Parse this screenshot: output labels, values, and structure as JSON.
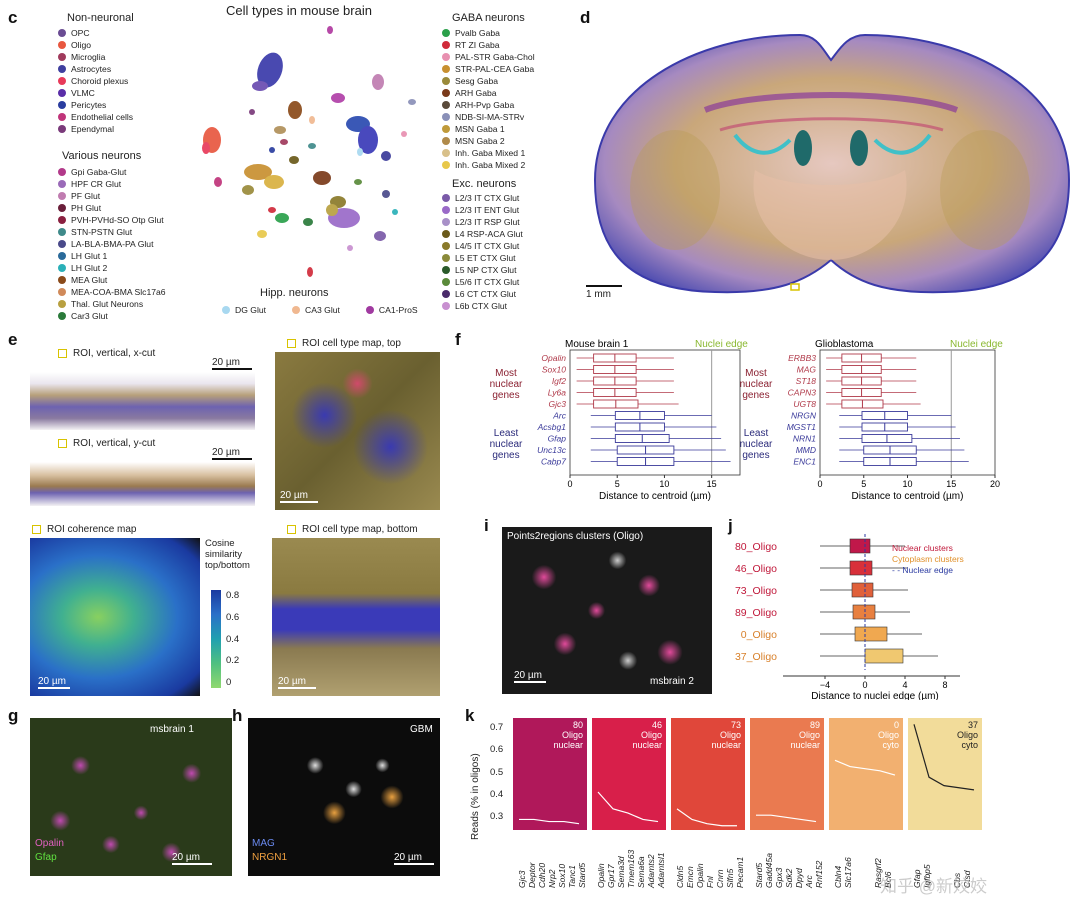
{
  "panels": {
    "c": "c",
    "d": "d",
    "e": "e",
    "f": "f",
    "g": "g",
    "h": "h",
    "i": "i",
    "j": "j",
    "k": "k"
  },
  "panel_c": {
    "title": "Cell types in mouse brain",
    "non_neuronal": {
      "title": "Non-neuronal",
      "items": [
        {
          "label": "OPC",
          "color": "#6a4c93"
        },
        {
          "label": "Oligo",
          "color": "#e8573f"
        },
        {
          "label": "Microglia",
          "color": "#a03a5c"
        },
        {
          "label": "Astrocytes",
          "color": "#3f3f9f"
        },
        {
          "label": "Choroid plexus",
          "color": "#e83a5a"
        },
        {
          "label": "VLMC",
          "color": "#5a2ea8"
        },
        {
          "label": "Pericytes",
          "color": "#2a3d9f"
        },
        {
          "label": "Endothelial cells",
          "color": "#c0347a"
        },
        {
          "label": "Ependymal",
          "color": "#7a3a7a"
        }
      ]
    },
    "various": {
      "title": "Various neurons",
      "items": [
        {
          "label": "Gpi Gaba-Glut",
          "color": "#b23a8a"
        },
        {
          "label": "HPF CR Glut",
          "color": "#9a6ab8"
        },
        {
          "label": "PF Glut",
          "color": "#c07cb0"
        },
        {
          "label": "PH Glut",
          "color": "#6a1f3a"
        },
        {
          "label": "PVH-PVHd-SO Otp Glut",
          "color": "#8a2040"
        },
        {
          "label": "STN-PSTN Glut",
          "color": "#3f8a8a"
        },
        {
          "label": "LA-BLA-BMA-PA Glut",
          "color": "#4a4a8a"
        },
        {
          "label": "LH Glut 1",
          "color": "#2a6a9a"
        },
        {
          "label": "LH Glut 2",
          "color": "#2ab0b8"
        },
        {
          "label": "MEA Glut",
          "color": "#8a4a1a"
        },
        {
          "label": "MEA-COA-BMA Slc17a6",
          "color": "#d08a5a"
        },
        {
          "label": "Thal. Glut Neurons",
          "color": "#b8a040"
        },
        {
          "label": "Car3 Glut",
          "color": "#2a7a3a"
        }
      ]
    },
    "gaba": {
      "title": "GABA neurons",
      "items": [
        {
          "label": "Pvalb Gaba",
          "color": "#2aa04a"
        },
        {
          "label": "RT ZI Gaba",
          "color": "#d02a3a"
        },
        {
          "label": "PAL-STR Gaba-Chol",
          "color": "#e890b0"
        },
        {
          "label": "STR-PAL-CEA Gaba",
          "color": "#c89030"
        },
        {
          "label": "Sesg Gaba",
          "color": "#9a8a3a"
        },
        {
          "label": "ARH Gaba",
          "color": "#7a3a1a"
        },
        {
          "label": "ARH-Pvp Gaba",
          "color": "#5a4a3a"
        },
        {
          "label": "NDB-SI-MA-STRv",
          "color": "#8a90b8"
        },
        {
          "label": "MSN Gaba 1",
          "color": "#c09a3a"
        },
        {
          "label": "MSN Gaba 2",
          "color": "#b08a4a"
        },
        {
          "label": "Inh. Gaba Mixed 1",
          "color": "#d8c08a"
        },
        {
          "label": "Inh. Gaba Mixed 2",
          "color": "#e8c84a"
        }
      ]
    },
    "exc": {
      "title": "Exc. neurons",
      "items": [
        {
          "label": "L2/3 IT CTX Glut",
          "color": "#7a5aa8"
        },
        {
          "label": "L2/3 IT ENT Glut",
          "color": "#9a6ac8"
        },
        {
          "label": "L2/3 IT RSP Glut",
          "color": "#a890c8"
        },
        {
          "label": "L4 RSP-ACA Glut",
          "color": "#6a5a1a"
        },
        {
          "label": "L4/5 IT CTX Glut",
          "color": "#8a7a2a"
        },
        {
          "label": "L5 ET CTX Glut",
          "color": "#8a8a3a"
        },
        {
          "label": "L5 NP CTX Glut",
          "color": "#2a5a2a"
        },
        {
          "label": "L5/6 IT CTX Glut",
          "color": "#5a8a3a"
        },
        {
          "label": "L6 CT CTX Glut",
          "color": "#4a2a6a"
        },
        {
          "label": "L6b CTX Glut",
          "color": "#c890d0"
        }
      ]
    },
    "hipp": {
      "title": "Hipp. neurons",
      "items": [
        {
          "label": "DG Glut",
          "color": "#a8d8f0"
        },
        {
          "label": "CA3 Glut",
          "color": "#f0b890"
        },
        {
          "label": "CA1-ProS",
          "color": "#a03aa0"
        }
      ]
    }
  },
  "panel_d": {
    "scale": "1 mm"
  },
  "panel_e": {
    "roi_x": "ROI, vertical, x-cut",
    "roi_y": "ROI, vertical, y-cut",
    "roi_top": "ROI cell type map, top",
    "roi_bottom": "ROI cell type map, bottom",
    "roi_coherence": "ROI coherence map",
    "cbar_title": "Cosine similarity top/bottom",
    "cbar_ticks": [
      "0.8",
      "0.6",
      "0.4",
      "0.2",
      "0"
    ],
    "scale": "20 µm"
  },
  "panel_f": {
    "mouse_title": "Mouse brain 1",
    "gbm_title": "Glioblastoma",
    "nuclei_edge": "Nuclei edge",
    "most": "Most nuclear genes",
    "least": "Least nuclear genes",
    "xlabel": "Distance to centroid (µm)",
    "mouse_most_genes": [
      "Opalin",
      "Sox10",
      "Igf2",
      "Ly6a",
      "Gjc3"
    ],
    "mouse_least_genes": [
      "Arc",
      "Acsbg1",
      "Gfap",
      "Unc13c",
      "Cabp7"
    ],
    "gbm_most_genes": [
      "ERBB3",
      "MAG",
      "ST18",
      "CAPN3",
      "UGT8"
    ],
    "gbm_least_genes": [
      "NRGN",
      "MGST1",
      "NRN1",
      "MMD",
      "ENC1"
    ],
    "mouse_ticks": [
      "0",
      "5",
      "10",
      "15"
    ],
    "gbm_ticks": [
      "0",
      "5",
      "10",
      "15",
      "20"
    ]
  },
  "panel_g": {
    "label": "msbrain 1",
    "gene1": "Opalin",
    "gene2": "Gfap",
    "scale": "20 µm"
  },
  "panel_h": {
    "label": "GBM",
    "gene1": "MAG",
    "gene2": "NRGN1",
    "scale": "20 µm"
  },
  "panel_i": {
    "title": "Points2regions clusters (Oligo)",
    "label": "msbrain 2",
    "scale": "20 µm"
  },
  "panel_j": {
    "clusters": [
      "80_Oligo",
      "46_Oligo",
      "73_Oligo",
      "89_Oligo",
      "0_Oligo",
      "37_Oligo"
    ],
    "legend": [
      "Nuclear clusters",
      "Cytoplasm clusters",
      "Nuclear edge"
    ],
    "xlabel": "Distance to nuclei edge (µm)",
    "ticks": [
      "−4",
      "0",
      "4",
      "8"
    ]
  },
  "panel_k": {
    "ylabel": "Reads (% in oligos)",
    "yticks": [
      "0.7",
      "0.6",
      "0.5",
      "0.4",
      "0.3"
    ],
    "cards": [
      {
        "num": "80",
        "l1": "Oligo",
        "l2": "nuclear",
        "color": "#b0185a",
        "genes": [
          "Gjc3",
          "Deptor",
          "Cdh20",
          "Nrp2",
          "Sox10",
          "Tanc1",
          "Stard5"
        ]
      },
      {
        "num": "46",
        "l1": "Oligo",
        "l2": "nuclear",
        "color": "#d81f4a",
        "genes": [
          "Opalin",
          "Gpr17",
          "Sema3d",
          "Tmem163",
          "Sema6a",
          "Adamts2",
          "Adamtsl1"
        ]
      },
      {
        "num": "73",
        "l1": "Oligo",
        "l2": "nuclear",
        "color": "#e0473a",
        "genes": [
          "Cldn5",
          "Emcn",
          "Opalin",
          "Fnl",
          "Cnrn",
          "Slfn5",
          "Pecam1"
        ]
      },
      {
        "num": "89",
        "l1": "Oligo",
        "l2": "nuclear",
        "color": "#ea7a50",
        "genes": [
          "Stard5",
          "Gadd45a",
          "Gpx3",
          "Sdk2",
          "Dpyd",
          "Arc",
          "Rnf152"
        ]
      },
      {
        "num": "0",
        "l1": "Oligo",
        "l2": "cyto",
        "color": "#f2b070",
        "genes": [
          "Cbln4",
          "Slc17a6",
          "",
          "",
          "Rasgrf2",
          "Bcl6",
          ""
        ]
      },
      {
        "num": "37",
        "l1": "Oligo",
        "l2": "cyto",
        "color": "#f2dc9a",
        "genes": [
          "Gfap",
          "Igfbp5",
          "",
          "",
          "Cbs",
          "Ctsd",
          ""
        ]
      }
    ]
  },
  "watermark": "知乎 @新姣姣"
}
